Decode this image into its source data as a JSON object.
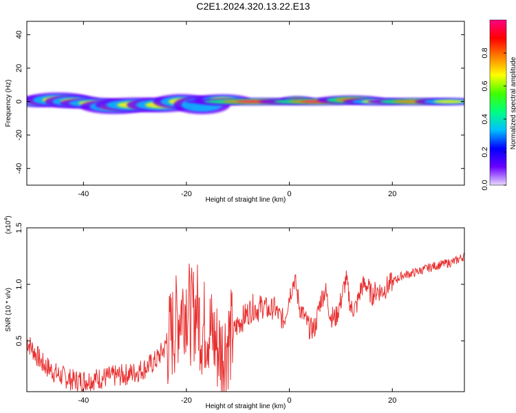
{
  "title": "C2E1.2024.320.13.22.E13",
  "chart_data": [
    {
      "type": "heatmap",
      "xlabel": "Height of straight line (km)",
      "ylabel": "Frequency (Hz)",
      "xlim": [
        -51,
        34
      ],
      "ylim": [
        -50,
        48
      ],
      "xticks": [
        "-40",
        "-20",
        "0",
        "20"
      ],
      "xtick_values": [
        -40,
        -20,
        0,
        20
      ],
      "yticks": [
        "40",
        "20",
        "0",
        "-20",
        "-40"
      ],
      "ytick_values": [
        40,
        20,
        0,
        -20,
        -40
      ],
      "colorbar": {
        "label": "Normalized spectral amplitude",
        "ticks": [
          "0.0",
          "0.2",
          "0.4",
          "0.6",
          "0.8"
        ],
        "tick_values": [
          0.0,
          0.2,
          0.4,
          0.6,
          0.8
        ],
        "range": [
          0,
          1
        ],
        "colors": [
          "#e8d8ff",
          "#6a00ff",
          "#0000ff",
          "#00c0ff",
          "#00ff80",
          "#40ff00",
          "#ffff00",
          "#ff8000",
          "#ff0000",
          "#ff0080"
        ]
      },
      "blobs": [
        {
          "x": -49,
          "f": 0,
          "w": 2.0,
          "h": 1.5,
          "a": 0.45
        },
        {
          "x": -45,
          "f": 1,
          "w": 3.0,
          "h": 2.0,
          "a": 0.5
        },
        {
          "x": -42,
          "f": 0,
          "w": 2.5,
          "h": 1.8,
          "a": 0.45
        },
        {
          "x": -38,
          "f": -1,
          "w": 3.0,
          "h": 1.5,
          "a": 0.6
        },
        {
          "x": -34,
          "f": -3,
          "w": 3.0,
          "h": 2.0,
          "a": 0.5
        },
        {
          "x": -30,
          "f": -2,
          "w": 3.5,
          "h": 2.0,
          "a": 0.55
        },
        {
          "x": -25,
          "f": -2,
          "w": 3.0,
          "h": 2.0,
          "a": 0.5
        },
        {
          "x": -21,
          "f": 0,
          "w": 2.5,
          "h": 2.0,
          "a": 0.45
        },
        {
          "x": -17,
          "f": -2,
          "w": 2.5,
          "h": 2.5,
          "a": 0.4
        },
        {
          "x": -13,
          "f": 1,
          "w": 2.5,
          "h": 1.5,
          "a": 0.6
        },
        {
          "x": -7,
          "f": 0,
          "w": 6.0,
          "h": 1.0,
          "a": 0.95
        },
        {
          "x": 1.5,
          "f": 1,
          "w": 1.5,
          "h": 1.0,
          "a": 0.9
        },
        {
          "x": 5,
          "f": 0,
          "w": 5.0,
          "h": 1.0,
          "a": 0.95
        },
        {
          "x": 12,
          "f": 1,
          "w": 3.0,
          "h": 1.2,
          "a": 0.7
        },
        {
          "x": 17,
          "f": 0,
          "w": 3.0,
          "h": 1.0,
          "a": 0.6
        },
        {
          "x": 24,
          "f": 0,
          "w": 4.0,
          "h": 1.0,
          "a": 0.7
        },
        {
          "x": 31,
          "f": 0,
          "w": 3.0,
          "h": 1.0,
          "a": 0.6
        }
      ]
    },
    {
      "type": "line",
      "xlabel": "Height of straight line (km)",
      "ylabel": "SNR (10 * v/v)",
      "y_multiplier": "(x10",
      "y_multiplier_exp": "4",
      "y_multiplier_close": ")",
      "xlim": [
        -51,
        34
      ],
      "ylim": [
        0.05,
        1.5
      ],
      "xticks": [
        "-40",
        "-20",
        "0",
        "20"
      ],
      "xtick_values": [
        -40,
        -20,
        0,
        20
      ],
      "yticks": [
        "1.5",
        "1.0",
        "0.5"
      ],
      "ytick_values": [
        1.5,
        1.0,
        0.5
      ],
      "color": "#e83030",
      "series": [
        {
          "x": [
            -51,
            -48,
            -45,
            -42,
            -40,
            -38,
            -35,
            -32,
            -30,
            -28,
            -26,
            -24,
            -22,
            -21,
            -20,
            -19,
            -18,
            -17,
            -16,
            -15,
            -14,
            -13,
            -12,
            -11,
            -10,
            -9,
            -8,
            -7,
            -6,
            -5,
            -4,
            -3,
            -2,
            -1,
            0,
            1,
            2,
            3,
            4,
            5,
            6,
            7,
            8,
            9,
            10,
            11,
            12,
            13,
            14,
            15,
            16,
            17,
            18,
            19,
            20,
            22,
            24,
            26,
            28,
            30,
            32,
            34
          ],
          "y": [
            0.5,
            0.3,
            0.2,
            0.15,
            0.15,
            0.16,
            0.18,
            0.2,
            0.22,
            0.26,
            0.32,
            0.45,
            0.65,
            0.8,
            0.85,
            0.7,
            0.8,
            0.6,
            0.65,
            0.55,
            0.45,
            0.4,
            0.5,
            0.55,
            0.65,
            0.7,
            0.75,
            0.8,
            0.78,
            0.82,
            0.76,
            0.8,
            0.72,
            0.68,
            0.9,
            1.05,
            0.8,
            0.7,
            0.6,
            0.62,
            0.85,
            0.95,
            0.72,
            0.7,
            0.85,
            1.05,
            0.78,
            0.8,
            0.98,
            1.0,
            0.9,
            0.95,
            0.94,
            0.98,
            1.02,
            1.08,
            1.1,
            1.13,
            1.16,
            1.18,
            1.2,
            1.25
          ]
        }
      ]
    }
  ]
}
